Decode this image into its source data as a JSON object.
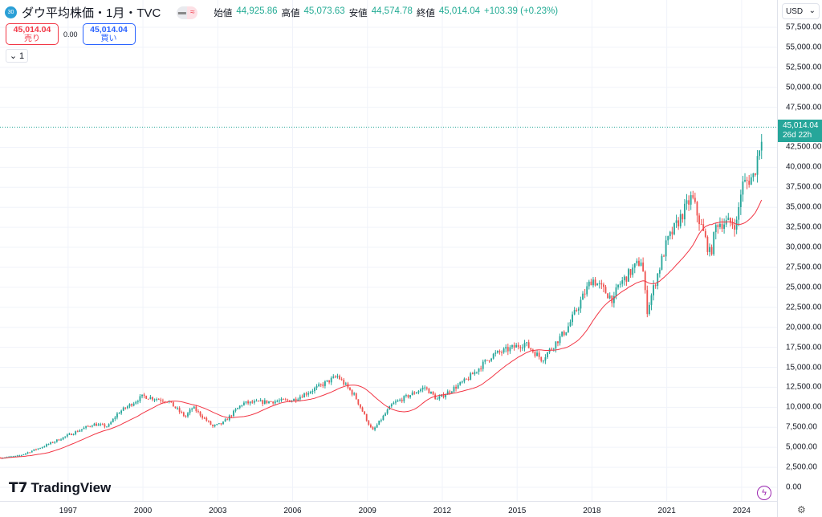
{
  "header": {
    "badge": "30",
    "symbol": "ダウ平均株価・1月・TVC",
    "open_label": "始値",
    "open": "44,925.86",
    "high_label": "高値",
    "high": "45,073.63",
    "low_label": "安値",
    "low": "44,574.78",
    "close_label": "終値",
    "close": "45,014.04",
    "change": "+103.39 (+0.23%)"
  },
  "trade": {
    "sell_price": "45,014.04",
    "sell_label": "売り",
    "spread": "0.00",
    "buy_price": "45,014.04",
    "buy_label": "買い"
  },
  "collapse": {
    "count": "1"
  },
  "axis": {
    "currency": "USD",
    "last_price": "45,014.04",
    "countdown": "26d 22h"
  },
  "brand": {
    "logo": "TradingView"
  },
  "colors": {
    "up": "#26a69a",
    "down": "#ef5350",
    "ma": "#f23645",
    "grid": "#f0f3fa"
  },
  "chart_data": {
    "type": "candlestick",
    "title": "ダウ平均株価・1月・TVC",
    "ylim": [
      0,
      57500
    ],
    "yticks": [
      "0.00",
      "2,500.00",
      "5,000.00",
      "7,500.00",
      "10,000.00",
      "12,500.00",
      "15,000.00",
      "17,500.00",
      "20,000.00",
      "22,500.00",
      "25,000.00",
      "27,500.00",
      "30,000.00",
      "32,500.00",
      "35,000.00",
      "37,500.00",
      "40,000.00",
      "42,500.00",
      "47,500.00",
      "50,000.00",
      "52,500.00",
      "55,000.00",
      "57,500.00"
    ],
    "yvalues": [
      0,
      2500,
      5000,
      7500,
      10000,
      12500,
      15000,
      17500,
      20000,
      22500,
      25000,
      27500,
      30000,
      32500,
      35000,
      37500,
      40000,
      42500,
      47500,
      50000,
      52500,
      55000,
      57500
    ],
    "xlim": [
      1994.27,
      2025.42
    ],
    "xticks": [
      "1997",
      "2000",
      "2003",
      "2006",
      "2009",
      "2012",
      "2015",
      "2018",
      "2021",
      "2024"
    ],
    "close_anchors": [
      [
        1994.3,
        3700
      ],
      [
        1995.0,
        3900
      ],
      [
        1996.0,
        5100
      ],
      [
        1997.0,
        6500
      ],
      [
        1998.0,
        7900
      ],
      [
        1998.6,
        7600
      ],
      [
        1999.0,
        9300
      ],
      [
        2000.0,
        11400
      ],
      [
        2001.0,
        10800
      ],
      [
        2001.7,
        8800
      ],
      [
        2002.0,
        10000
      ],
      [
        2002.8,
        7600
      ],
      [
        2003.2,
        8000
      ],
      [
        2004.0,
        10500
      ],
      [
        2005.0,
        10700
      ],
      [
        2006.0,
        10900
      ],
      [
        2007.0,
        12500
      ],
      [
        2007.8,
        13900
      ],
      [
        2008.5,
        11400
      ],
      [
        2009.2,
        7000
      ],
      [
        2010.0,
        10400
      ],
      [
        2011.3,
        12500
      ],
      [
        2011.8,
        11000
      ],
      [
        2013.0,
        13500
      ],
      [
        2014.0,
        16500
      ],
      [
        2015.3,
        18000
      ],
      [
        2016.0,
        16000
      ],
      [
        2017.0,
        19800
      ],
      [
        2018.0,
        26100
      ],
      [
        2018.9,
        23300
      ],
      [
        2019.0,
        25000
      ],
      [
        2020.0,
        28500
      ],
      [
        2020.2,
        22000
      ],
      [
        2021.0,
        30600
      ],
      [
        2022.0,
        36300
      ],
      [
        2022.75,
        29000
      ],
      [
        2023.0,
        33100
      ],
      [
        2023.8,
        33000
      ],
      [
        2024.0,
        37700
      ],
      [
        2024.5,
        39000
      ],
      [
        2024.85,
        45014.04
      ]
    ],
    "last_close": 45014.04,
    "ma_period": 24
  }
}
